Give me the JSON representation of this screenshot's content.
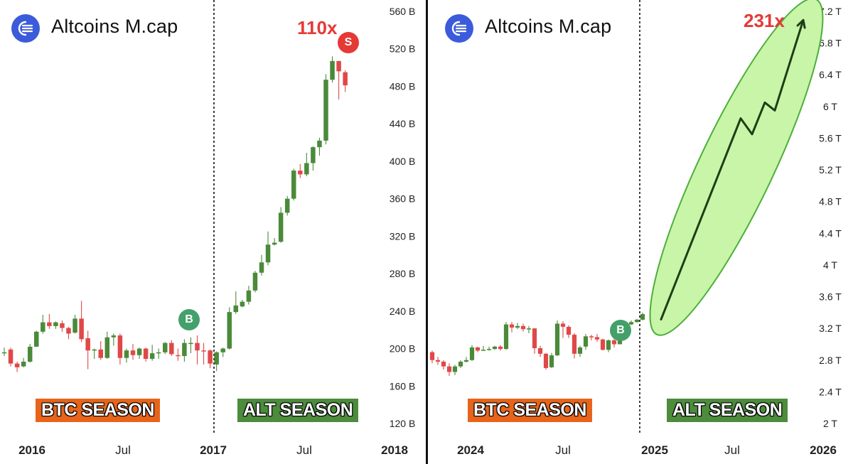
{
  "left": {
    "title": "Altcoins M.cap",
    "btc_label": "BTC SEASON",
    "alt_label": "ALT SEASON",
    "multiplier": "110x",
    "buy_badge": "B",
    "sell_badge": "S"
  },
  "right": {
    "title": "Altcoins M.cap",
    "btc_label": "BTC SEASON",
    "alt_label": "ALT SEASON",
    "multiplier": "231x",
    "buy_badge": "B"
  },
  "colors": {
    "up": "#4a8a3a",
    "down": "#e04848",
    "btc_season": "#e8641b",
    "alt_season": "#4c8c3c",
    "projection_fill": "#c8f5a8",
    "projection_stroke": "#4caf3a",
    "accent": "#e53935",
    "logo": "#3b5bdb"
  },
  "chart_data": [
    {
      "type": "candlestick",
      "title": "Altcoins M.cap",
      "y_unit": "B",
      "ylim": [
        120,
        560
      ],
      "y_ticks": [
        "560 B",
        "520 B",
        "480 B",
        "440 B",
        "400 B",
        "360 B",
        "320 B",
        "280 B",
        "240 B",
        "200 B",
        "160 B",
        "120 B"
      ],
      "x_ticks": [
        {
          "label": "2016",
          "bold": true
        },
        {
          "label": "Jul",
          "bold": false
        },
        {
          "label": "2017",
          "bold": true
        },
        {
          "label": "Jul",
          "bold": false
        },
        {
          "label": "2018",
          "bold": true
        }
      ],
      "candles": [
        [
          196,
          196,
          201,
          192
        ],
        [
          199,
          184,
          201,
          181
        ],
        [
          184,
          180,
          186,
          175
        ],
        [
          181,
          186,
          190,
          180
        ],
        [
          186,
          202,
          205,
          185
        ],
        [
          202,
          218,
          219,
          202
        ],
        [
          218,
          228,
          236,
          216
        ],
        [
          228,
          224,
          237,
          221
        ],
        [
          224,
          228,
          229,
          221
        ],
        [
          227,
          222,
          230,
          218
        ],
        [
          222,
          216,
          223,
          210
        ],
        [
          217,
          232,
          236,
          216
        ],
        [
          232,
          210,
          251,
          207
        ],
        [
          211,
          198,
          219,
          178
        ],
        [
          199,
          199,
          200,
          189
        ],
        [
          199,
          190,
          208,
          188
        ],
        [
          190,
          212,
          218,
          189
        ],
        [
          212,
          214,
          216,
          203
        ],
        [
          214,
          190,
          216,
          183
        ],
        [
          190,
          198,
          200,
          185
        ],
        [
          198,
          193,
          205,
          188
        ],
        [
          193,
          200,
          201,
          189
        ],
        [
          200,
          189,
          201,
          186
        ],
        [
          189,
          195,
          204,
          187
        ],
        [
          195,
          196,
          200,
          189
        ],
        [
          196,
          206,
          207,
          194
        ],
        [
          206,
          194,
          209,
          192
        ],
        [
          193,
          192,
          200,
          187
        ],
        [
          192,
          206,
          210,
          186
        ],
        [
          206,
          206,
          212,
          195
        ],
        [
          206,
          198,
          214,
          183
        ],
        [
          198,
          197,
          206,
          183
        ],
        [
          198,
          184,
          199,
          179
        ],
        [
          183,
          196,
          197,
          176
        ],
        [
          196,
          200,
          201,
          191
        ],
        [
          200,
          239,
          244,
          199
        ],
        [
          239,
          246,
          261,
          237
        ],
        [
          245,
          250,
          252,
          244
        ],
        [
          250,
          262,
          267,
          247
        ],
        [
          262,
          281,
          283,
          260
        ],
        [
          281,
          292,
          300,
          278
        ],
        [
          292,
          311,
          325,
          289
        ],
        [
          311,
          313,
          318,
          310
        ],
        [
          314,
          345,
          351,
          313
        ],
        [
          345,
          360,
          363,
          342
        ],
        [
          360,
          390,
          392,
          358
        ],
        [
          390,
          386,
          397,
          382
        ],
        [
          386,
          398,
          409,
          384
        ],
        [
          398,
          415,
          416,
          390
        ],
        [
          415,
          422,
          425,
          406
        ],
        [
          422,
          487,
          493,
          418
        ],
        [
          487,
          507,
          512,
          484
        ],
        [
          507,
          496,
          507,
          466
        ],
        [
          495,
          481,
          497,
          474
        ]
      ],
      "buy_signal_at_candle": 33,
      "sell_signal_at_candle": 51,
      "season_split_x": "2017",
      "seasons": [
        "BTC SEASON",
        "ALT SEASON"
      ],
      "annotation": "110x"
    },
    {
      "type": "candlestick",
      "title": "Altcoins M.cap",
      "y_unit": "T",
      "ylim": [
        2.0,
        7.2
      ],
      "y_ticks": [
        "7.2 T",
        "6.8 T",
        "6.4 T",
        "6 T",
        "5.6 T",
        "5.2 T",
        "4.8 T",
        "4.4 T",
        "4 T",
        "3.6 T",
        "3.2 T",
        "2.8 T",
        "2.4 T",
        "2 T"
      ],
      "x_ticks": [
        {
          "label": "2024",
          "bold": true
        },
        {
          "label": "Jul",
          "bold": false
        },
        {
          "label": "2025",
          "bold": true
        },
        {
          "label": "Jul",
          "bold": false
        },
        {
          "label": "2026",
          "bold": true
        }
      ],
      "candles": [
        [
          2.9,
          2.8,
          2.92,
          2.76
        ],
        [
          2.8,
          2.78,
          2.84,
          2.74
        ],
        [
          2.78,
          2.72,
          2.8,
          2.68
        ],
        [
          2.72,
          2.65,
          2.76,
          2.6
        ],
        [
          2.65,
          2.72,
          2.74,
          2.61
        ],
        [
          2.72,
          2.78,
          2.8,
          2.7
        ],
        [
          2.78,
          2.8,
          2.84,
          2.77
        ],
        [
          2.8,
          2.96,
          2.99,
          2.79
        ],
        [
          2.96,
          2.92,
          2.97,
          2.9
        ],
        [
          2.93,
          2.93,
          2.98,
          2.92
        ],
        [
          2.93,
          2.94,
          2.97,
          2.92
        ],
        [
          2.94,
          2.97,
          2.98,
          2.93
        ],
        [
          2.97,
          2.94,
          2.99,
          2.92
        ],
        [
          2.94,
          3.25,
          3.28,
          2.93
        ],
        [
          3.25,
          3.21,
          3.28,
          3.15
        ],
        [
          3.21,
          3.23,
          3.27,
          3.19
        ],
        [
          3.23,
          3.19,
          3.26,
          3.16
        ],
        [
          3.2,
          3.2,
          3.23,
          3.14
        ],
        [
          3.2,
          2.95,
          3.2,
          2.88
        ],
        [
          2.95,
          2.88,
          2.98,
          2.84
        ],
        [
          2.88,
          2.7,
          2.89,
          2.68
        ],
        [
          2.71,
          2.86,
          2.89,
          2.7
        ],
        [
          2.86,
          3.26,
          3.3,
          2.85
        ],
        [
          3.26,
          3.22,
          3.29,
          3.08
        ],
        [
          3.22,
          3.12,
          3.24,
          3.08
        ],
        [
          3.12,
          2.88,
          3.14,
          2.82
        ],
        [
          2.88,
          2.96,
          2.98,
          2.84
        ],
        [
          2.97,
          3.1,
          3.13,
          2.93
        ],
        [
          3.1,
          3.09,
          3.12,
          3.05
        ],
        [
          3.09,
          3.06,
          3.13,
          3.03
        ],
        [
          3.06,
          2.93,
          3.07,
          2.92
        ],
        [
          2.93,
          3.05,
          3.06,
          2.9
        ],
        [
          3.05,
          3.0,
          3.08,
          2.96
        ],
        [
          3.0,
          3.08,
          3.1,
          3.0
        ],
        [
          3.08,
          3.25,
          3.27,
          3.06
        ],
        [
          3.25,
          3.28,
          3.3,
          3.24
        ],
        [
          3.28,
          3.31,
          3.32,
          3.27
        ],
        [
          3.31,
          3.38,
          3.4,
          3.3
        ]
      ],
      "buy_signal_at_candle": 31,
      "season_split_x": "2025",
      "seasons": [
        "BTC SEASON",
        "ALT SEASON"
      ],
      "projection": {
        "from": 3.35,
        "to": 7.0,
        "label": "231x"
      }
    }
  ]
}
